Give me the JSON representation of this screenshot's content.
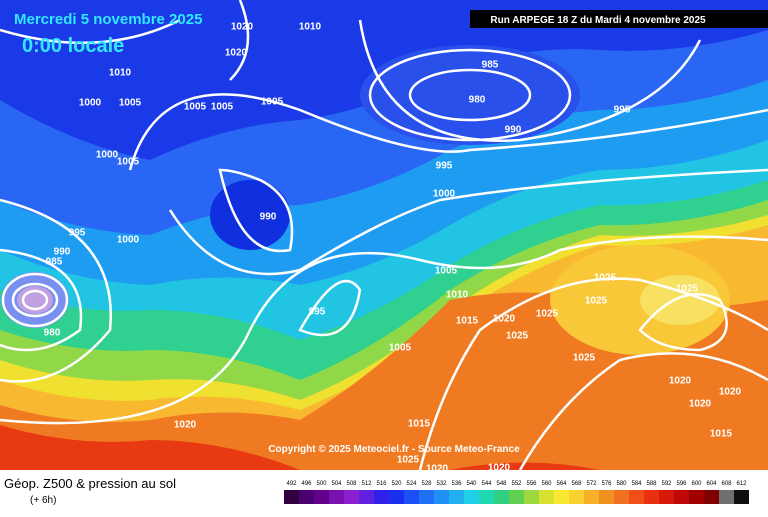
{
  "header": {
    "date": "Mercredi 5 novembre 2025",
    "time": "0:00 locale",
    "run": "Run ARPEGE 18 Z du Mardi 4 novembre 2025"
  },
  "copyright": "Copyright © 2025 Meteociel.fr - Source Meteo-France",
  "footer": {
    "title": "Géop. Z500 & pression au sol",
    "step": "(+ 6h)"
  },
  "legend": {
    "values": [
      492,
      496,
      500,
      504,
      508,
      512,
      516,
      520,
      524,
      528,
      532,
      536,
      540,
      544,
      548,
      552,
      556,
      560,
      564,
      568,
      572,
      576,
      580,
      584,
      588,
      592,
      596,
      600,
      604,
      608,
      612
    ],
    "colors": [
      "#300040",
      "#4a0070",
      "#62008c",
      "#7a10b0",
      "#8a20d0",
      "#6020e0",
      "#3020e8",
      "#1a30f0",
      "#1a50f4",
      "#2070f6",
      "#2090f6",
      "#20b0f0",
      "#20d0e8",
      "#20d8b0",
      "#30d080",
      "#60d050",
      "#a0d840",
      "#d8e030",
      "#f8e830",
      "#f8d030",
      "#f8b028",
      "#f09020",
      "#f07020",
      "#f05018",
      "#e83010",
      "#d81808",
      "#c00808",
      "#a00000",
      "#800000",
      "#707070",
      "#101010"
    ]
  },
  "isobar_labels": [
    1010,
    1000,
    1005,
    1005,
    1005,
    1000,
    1005,
    985,
    980,
    990,
    995,
    995,
    1000,
    990,
    995,
    1000,
    990,
    985,
    980,
    995,
    1005,
    1010,
    1015,
    1020,
    1025,
    1025,
    1025,
    1025,
    1025,
    1025,
    1020,
    1020,
    1020,
    1015,
    1015,
    1020,
    1005,
    1025,
    1020,
    1020,
    1010,
    1020,
    1020,
    1005
  ]
}
